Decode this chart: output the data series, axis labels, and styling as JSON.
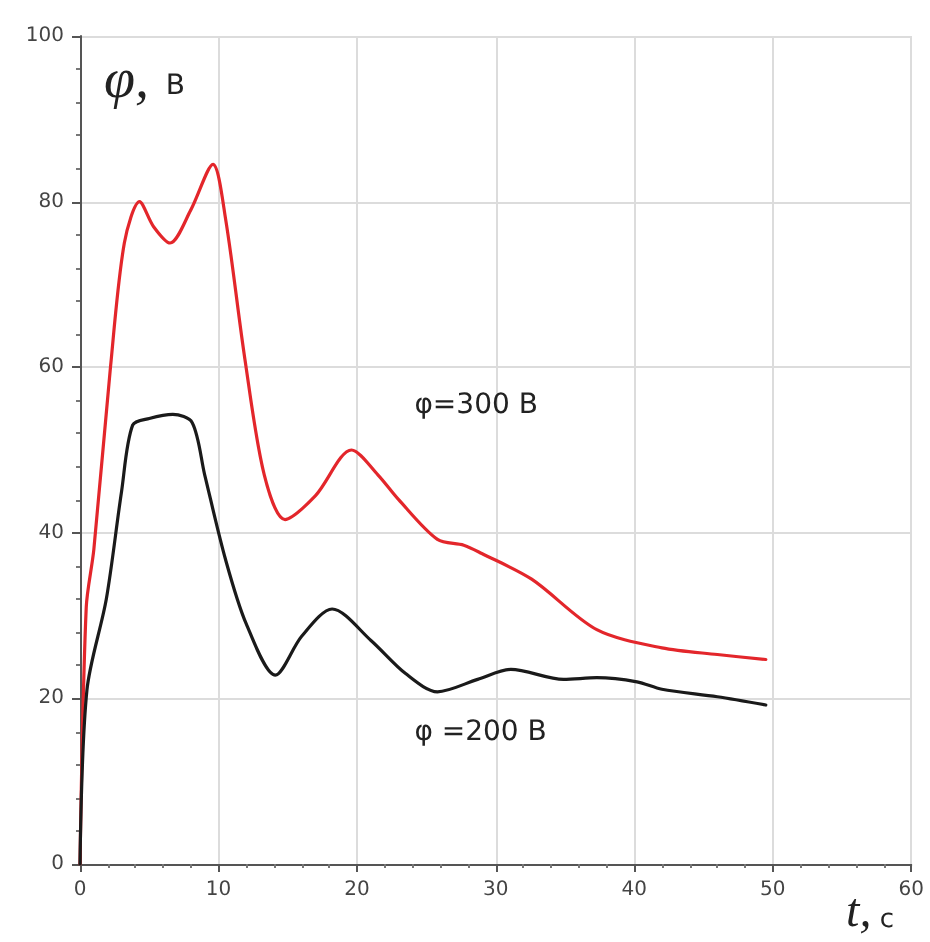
{
  "chart_data": {
    "type": "line",
    "xlabel": "t, с",
    "ylabel": "φ, В",
    "xlim": [
      0,
      60
    ],
    "xticks": [
      0,
      10,
      20,
      30,
      40,
      50,
      60
    ],
    "ylim": [
      0,
      100
    ],
    "yticks": [
      0,
      20,
      40,
      60,
      80,
      100
    ],
    "grid": true,
    "marker": "none",
    "line_style": "solid",
    "annotations": [
      "φ=300 В",
      "φ =200 В"
    ],
    "series": [
      {
        "color": "#e3262b",
        "x": [
          0,
          0.45,
          1,
          2.2,
          3.2,
          4.3,
          5.3,
          6.5,
          8,
          9.6,
          10.5,
          11.9,
          13.3,
          14.8,
          17,
          19.6,
          21.5,
          23,
          25.8,
          27.7,
          29,
          32.6,
          37.3,
          42,
          46,
          49.5
        ],
        "values": [
          0,
          31,
          38,
          60,
          75,
          80,
          77,
          75,
          79,
          84.5,
          78,
          61,
          47,
          41.6,
          44.5,
          50,
          47,
          44,
          39.2,
          38.5,
          37.5,
          34.4,
          28.3,
          26.1,
          25.3,
          24.7
        ]
      },
      {
        "color": "#1a1a1a",
        "x": [
          0,
          0.5,
          1.9,
          3,
          3.8,
          5,
          6.7,
          8.1,
          9,
          10.5,
          12,
          14.1,
          16,
          18.2,
          21,
          23.5,
          25.8,
          28.7,
          31.1,
          34.9,
          37.3,
          40.2,
          42,
          46,
          49.5
        ],
        "values": [
          0,
          21,
          32,
          45,
          53,
          53.8,
          54.3,
          53.3,
          47,
          36.8,
          29,
          22.8,
          27.5,
          30.8,
          27,
          23,
          20.8,
          22.3,
          23.5,
          22.3,
          22.5,
          22,
          21.1,
          20.2,
          19.2
        ]
      }
    ]
  }
}
